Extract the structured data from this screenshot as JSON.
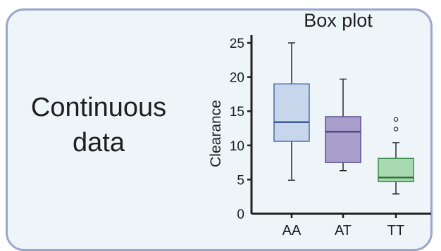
{
  "panel": {
    "label_line1": "Continuous",
    "label_line2": "data"
  },
  "chart_data": {
    "type": "box",
    "title": "Box plot",
    "xlabel": "",
    "ylabel": "Clearance",
    "categories": [
      "AA",
      "AT",
      "TT"
    ],
    "ylim": [
      0,
      27
    ],
    "yticks": [
      0,
      5,
      10,
      15,
      20,
      25
    ],
    "grid": false,
    "boxes": [
      {
        "category": "AA",
        "min": 4.9,
        "q1": 10.6,
        "median": 13.4,
        "q3": 19.0,
        "max": 25.0,
        "outliers": [],
        "fill": "#c7d6eb",
        "stroke": "#4a6ca8",
        "median_color": "#2d4d8f"
      },
      {
        "category": "AT",
        "min": 6.3,
        "q1": 7.5,
        "median": 12.0,
        "q3": 14.2,
        "max": 19.7,
        "outliers": [],
        "fill": "#a99fcc",
        "stroke": "#5e4f99",
        "median_color": "#4a3a86"
      },
      {
        "category": "TT",
        "min": 2.9,
        "q1": 4.7,
        "median": 5.3,
        "q3": 8.1,
        "max": 10.4,
        "outliers": [
          12.4,
          13.8
        ],
        "fill": "#a8d9b0",
        "stroke": "#3f8a50",
        "median_color": "#2d6e3c"
      }
    ]
  }
}
